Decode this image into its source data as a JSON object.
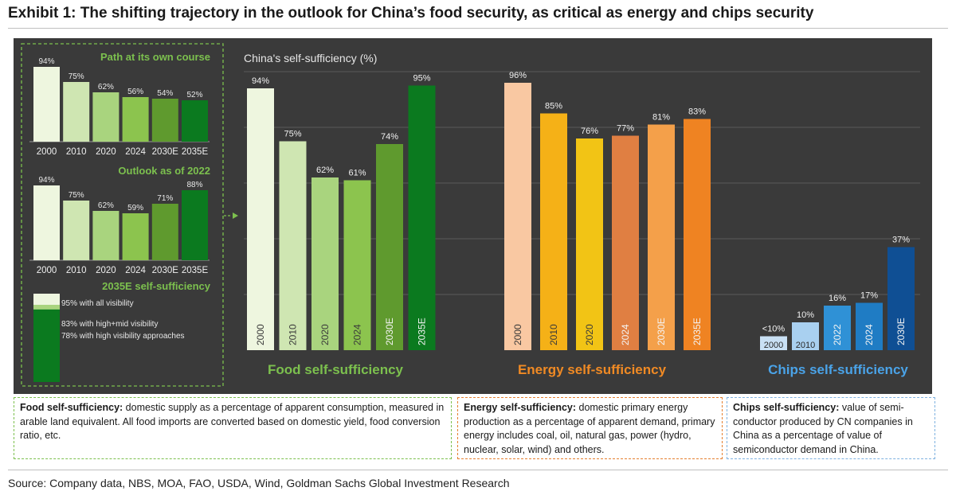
{
  "title": "Exhibit 1: The shifting trajectory in the outlook for China’s food security, as critical as energy and chips security",
  "source": "Source: Company data, NBS, MOA, FAO, USDA, Wind, Goldman Sachs Global Investment Research",
  "colors": {
    "panel_bg": "#3a3a3a",
    "food": [
      "#eef6df",
      "#cfe6b2",
      "#a9d47e",
      "#8cc44e",
      "#5f9a2e",
      "#0b7a1f"
    ],
    "energy": [
      "#f9c8a2",
      "#f5b117",
      "#f2c415",
      "#e07f42",
      "#f4a04a",
      "#ef8322"
    ],
    "chips": [
      "#c9e0f4",
      "#a9d0f0",
      "#2f91d6",
      "#1f7cc4",
      "#0f4f94"
    ]
  },
  "chart_data": [
    {
      "id": "main",
      "type": "bar",
      "title": "China's self-sufficiency (%)",
      "ylim": [
        0,
        100
      ],
      "groups": [
        {
          "name": "Food self-sufficiency",
          "categories": [
            "2000",
            "2010",
            "2020",
            "2024",
            "2030E",
            "2035E"
          ],
          "values": [
            94,
            75,
            62,
            61,
            74,
            95
          ],
          "labels": [
            "94%",
            "75%",
            "62%",
            "61%",
            "74%",
            "95%"
          ]
        },
        {
          "name": "Energy self-sufficiency",
          "categories": [
            "2000",
            "2010",
            "2020",
            "2024",
            "2030E",
            "2035E"
          ],
          "values": [
            96,
            85,
            76,
            77,
            81,
            83
          ],
          "labels": [
            "96%",
            "85%",
            "76%",
            "77%",
            "81%",
            "83%"
          ]
        },
        {
          "name": "Chips self-sufficiency",
          "categories": [
            "2000",
            "2010",
            "2022",
            "2024",
            "2030E"
          ],
          "values": [
            5,
            10,
            16,
            17,
            37
          ],
          "labels": [
            "<10%",
            "10%",
            "16%",
            "17%",
            "37%"
          ]
        }
      ]
    },
    {
      "id": "path",
      "type": "bar",
      "title": "Path at its own course",
      "categories": [
        "2000",
        "2010",
        "2020",
        "2024",
        "2030E",
        "2035E"
      ],
      "values": [
        94,
        75,
        62,
        56,
        54,
        52
      ],
      "labels": [
        "94%",
        "75%",
        "62%",
        "56%",
        "54%",
        "52%"
      ]
    },
    {
      "id": "outlook",
      "type": "bar",
      "title": "Outlook as of 2022",
      "categories": [
        "2000",
        "2010",
        "2020",
        "2024",
        "2030E",
        "2035E"
      ],
      "values": [
        94,
        75,
        62,
        59,
        71,
        88
      ],
      "labels": [
        "94%",
        "75%",
        "62%",
        "59%",
        "71%",
        "88%"
      ]
    },
    {
      "id": "visibility",
      "type": "bar",
      "title": "2035E self-sufficiency",
      "segments": [
        {
          "value": 95,
          "label": "95% with all visibility"
        },
        {
          "value": 83,
          "label": "83% with high+mid visibility"
        },
        {
          "value": 78,
          "label": "78% with high visibility approaches"
        }
      ]
    }
  ],
  "notes": {
    "food": {
      "term": "Food self-sufficiency:",
      "text": " domestic supply as a percentage of apparent consumption, measured in arable land equivalent. All food imports are converted based on domestic yield, food conversion ratio, etc."
    },
    "energy": {
      "term": "Energy self-sufficiency:",
      "text": " domestic primary energy production as a percentage of apparent demand, primary energy includes coal, oil, natural gas, power (hydro, nuclear, solar, wind) and others."
    },
    "chips": {
      "term": "Chips self-sufficiency:",
      "text": " value of semi-conductor produced by CN companies in China as a percentage of value of semiconductor demand in China."
    }
  }
}
